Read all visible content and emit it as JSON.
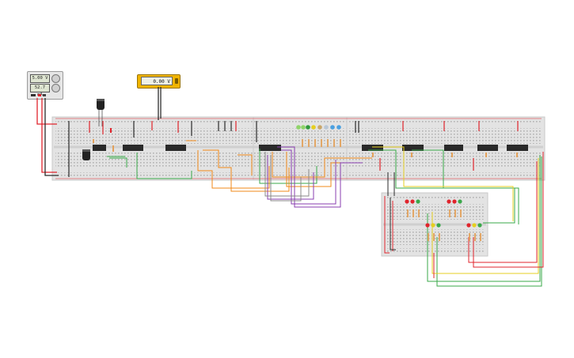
{
  "power_supply": {
    "voltage_display": "5.00 V",
    "current_display": "52.7 mA"
  },
  "multimeter": {
    "reading": "0.00 V"
  },
  "colors": {
    "breadboard": "#e3e3e3",
    "wire_red": "#e0242c",
    "wire_black": "#2b2b2b",
    "wire_orange": "#f08a1a",
    "wire_green": "#3aa84a",
    "wire_purple": "#8a3fb0",
    "wire_yellow": "#e6cf20",
    "chip": "#2a2a2a"
  }
}
